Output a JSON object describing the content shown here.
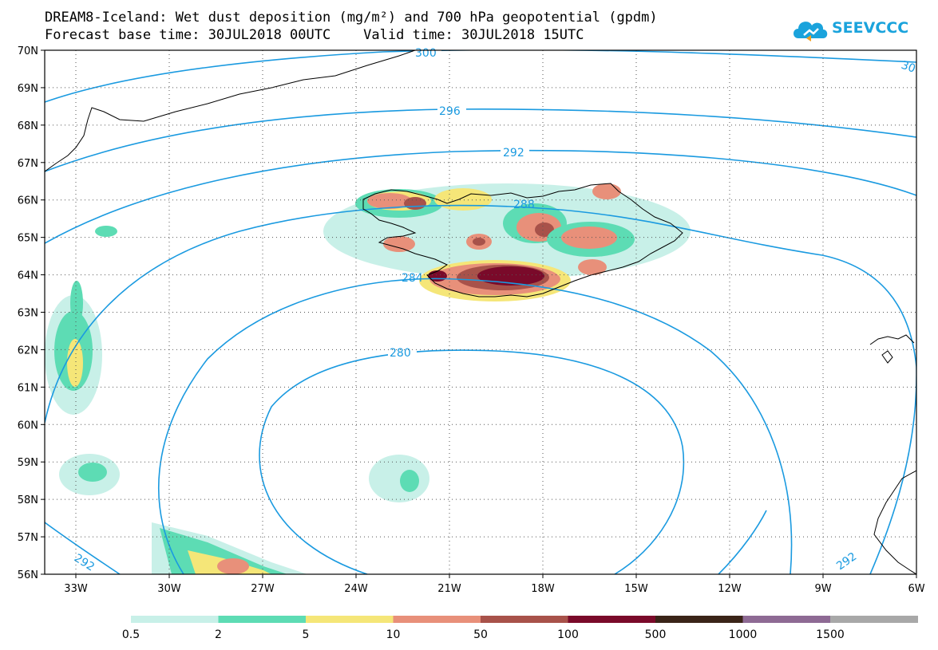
{
  "title": {
    "line1": "DREAM8-Iceland: Wet dust deposition (mg/m²) and 700 hPa geopotential (gpdm)",
    "line2": "Forecast base time: 30JUL2018 00UTC    Valid time: 30JUL2018 15UTC"
  },
  "logo": {
    "text": "SEEVCCC",
    "icon": "cloud-icon",
    "color": "#1aa3dc"
  },
  "map": {
    "lon_range": [
      -34,
      -6
    ],
    "lat_range": [
      56,
      70
    ],
    "lon_ticks": [
      {
        "value": -33,
        "label": "33W"
      },
      {
        "value": -30,
        "label": "30W"
      },
      {
        "value": -27,
        "label": "27W"
      },
      {
        "value": -24,
        "label": "24W"
      },
      {
        "value": -21,
        "label": "21W"
      },
      {
        "value": -18,
        "label": "18W"
      },
      {
        "value": -15,
        "label": "15W"
      },
      {
        "value": -12,
        "label": "12W"
      },
      {
        "value": -9,
        "label": "9W"
      },
      {
        "value": -6,
        "label": "6W"
      }
    ],
    "lat_ticks": [
      {
        "value": 56,
        "label": "56N"
      },
      {
        "value": 57,
        "label": "57N"
      },
      {
        "value": 58,
        "label": "58N"
      },
      {
        "value": 59,
        "label": "59N"
      },
      {
        "value": 60,
        "label": "60N"
      },
      {
        "value": 61,
        "label": "61N"
      },
      {
        "value": 62,
        "label": "62N"
      },
      {
        "value": 63,
        "label": "63N"
      },
      {
        "value": 64,
        "label": "64N"
      },
      {
        "value": 65,
        "label": "65N"
      },
      {
        "value": 66,
        "label": "66N"
      },
      {
        "value": 67,
        "label": "67N"
      },
      {
        "value": 68,
        "label": "68N"
      },
      {
        "value": 69,
        "label": "69N"
      },
      {
        "value": 70,
        "label": "70N"
      }
    ],
    "grid": true,
    "contour_color": "#1a9ae0",
    "contour_labels": [
      "300",
      "296",
      "292",
      "288",
      "284",
      "280",
      "292",
      "292",
      "30"
    ]
  },
  "colorbar": {
    "colors": [
      "#c8f0e8",
      "#5ddcb4",
      "#f5e678",
      "#e8907a",
      "#a8524a",
      "#7a0a2a",
      "#3a2418",
      "#8e6a94",
      "#a8a8a8"
    ],
    "labels": [
      "0.5",
      "2",
      "5",
      "10",
      "50",
      "100",
      "500",
      "1000",
      "1500"
    ]
  }
}
